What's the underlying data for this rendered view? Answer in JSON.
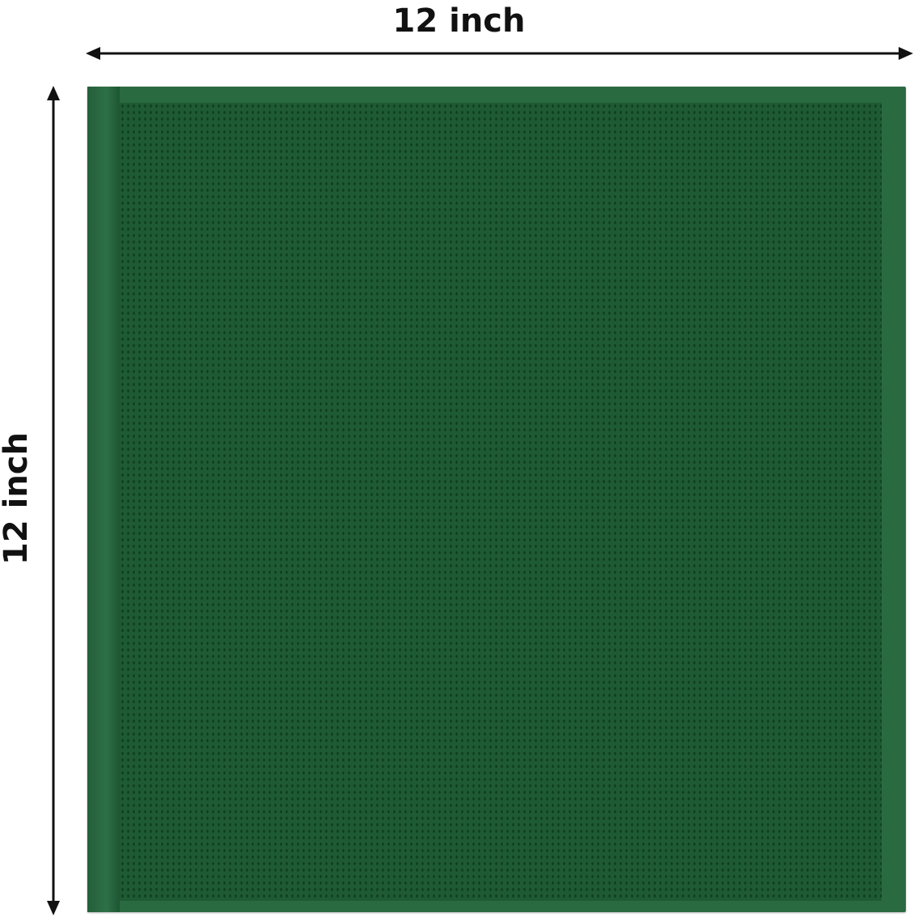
{
  "width_label": "12 inch",
  "height_label": "12 inch",
  "colors": {
    "cloth": "#1e5a34",
    "hem": "#2a6a41",
    "text": "#111111"
  }
}
